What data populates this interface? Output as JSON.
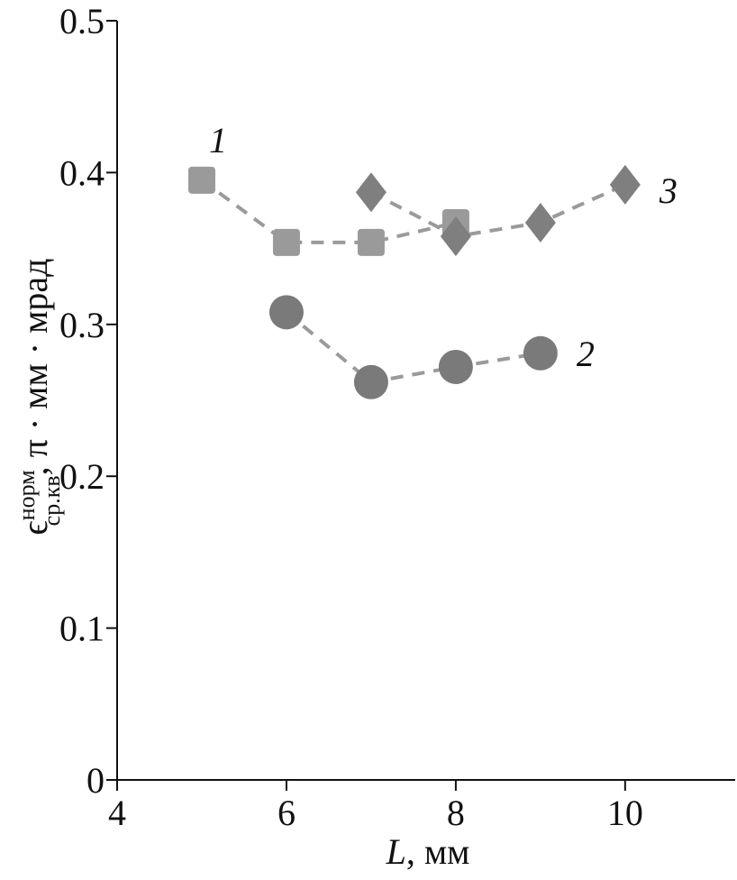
{
  "chart_data": {
    "type": "scatter",
    "x_label": {
      "symbol": "L",
      "unit": ", мм"
    },
    "y_label": {
      "symbol": "ϵ",
      "superscript": "норм",
      "subscript": "ср.кв",
      "unit": ", π · мм · мрад"
    },
    "xlim": [
      4,
      11.3
    ],
    "xticks": [
      4,
      6,
      8,
      10
    ],
    "ylim": [
      0,
      0.5
    ],
    "yticks": [
      0,
      0.1,
      0.2,
      0.3,
      0.4,
      0.5
    ],
    "series": [
      {
        "name": "1",
        "color": "#9a9a9a",
        "marker": "square",
        "x": [
          5,
          6,
          7,
          8
        ],
        "values": [
          0.395,
          0.354,
          0.354,
          0.367
        ]
      },
      {
        "name": "2",
        "color": "#7a7a7a",
        "marker": "circle",
        "x": [
          6,
          7,
          8,
          9
        ],
        "values": [
          0.308,
          0.262,
          0.272,
          0.281
        ]
      },
      {
        "name": "3",
        "color": "#7f7f7f",
        "marker": "diamond",
        "x": [
          7,
          8,
          9,
          10
        ],
        "values": [
          0.387,
          0.358,
          0.367,
          0.392
        ]
      }
    ]
  }
}
